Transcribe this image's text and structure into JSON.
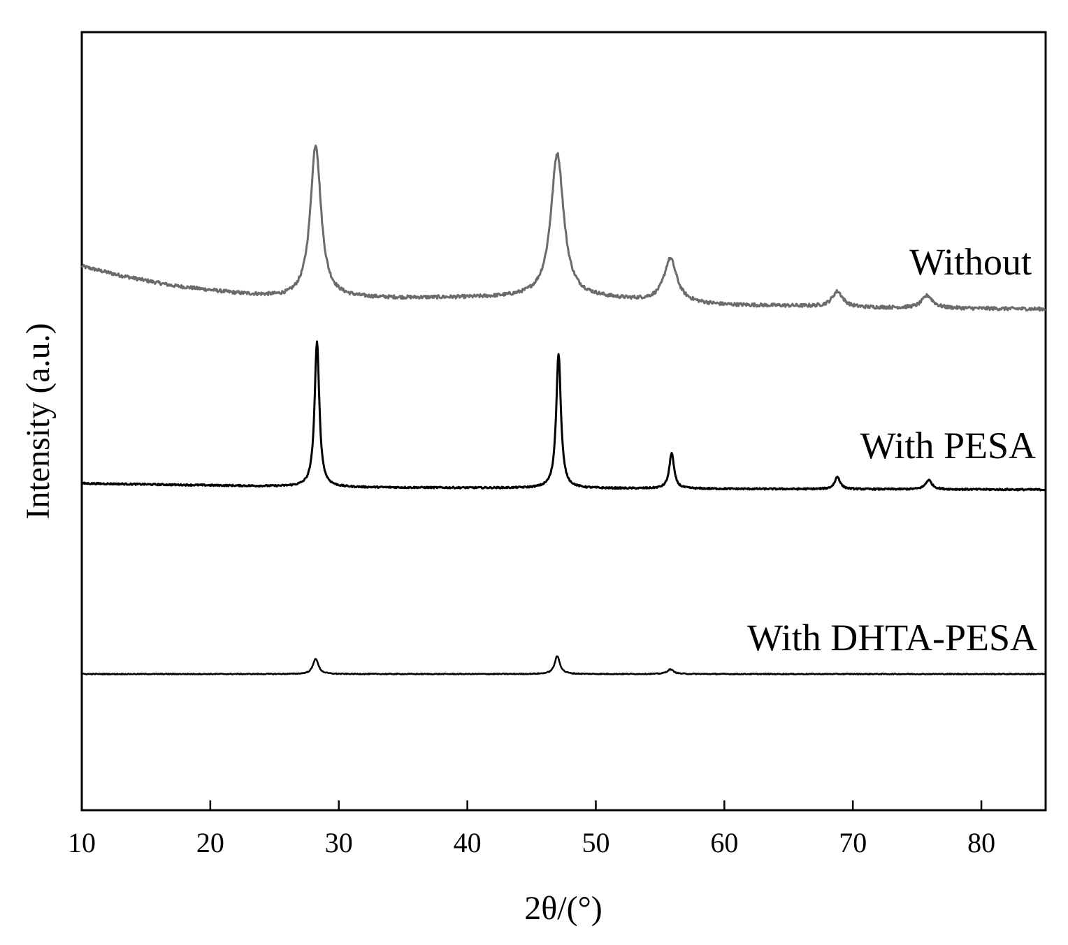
{
  "chart_data": {
    "type": "line",
    "title": "",
    "xlabel": "2θ/(°)",
    "ylabel": "Intensity (a.u.)",
    "xlim": [
      10,
      85
    ],
    "ylim": [
      0,
      100
    ],
    "xticks": [
      "10",
      "20",
      "30",
      "40",
      "50",
      "60",
      "70",
      "80"
    ],
    "yticks": [],
    "grid": false,
    "legend": "none",
    "series": [
      {
        "name": "Without",
        "color": "#6b6b6b",
        "baseline": [
          [
            10,
            69.9
          ],
          [
            13,
            68.7
          ],
          [
            17,
            67.4
          ],
          [
            22,
            66.4
          ],
          [
            26,
            65.8
          ],
          [
            35,
            65.8
          ],
          [
            45,
            65.9
          ],
          [
            50,
            65.8
          ],
          [
            55,
            65.3
          ],
          [
            60,
            64.9
          ],
          [
            65,
            64.8
          ],
          [
            70,
            64.6
          ],
          [
            85,
            64.4
          ]
        ],
        "peaks": [
          {
            "x": 28.2,
            "height": 19.7,
            "width": 0.5
          },
          {
            "x": 47.0,
            "height": 18.5,
            "width": 0.6
          },
          {
            "x": 55.8,
            "height": 5.6,
            "width": 0.6
          },
          {
            "x": 68.8,
            "height": 2.0,
            "width": 0.5
          },
          {
            "x": 75.8,
            "height": 1.6,
            "width": 0.5
          }
        ]
      },
      {
        "name": "With PESA",
        "color": "#000000",
        "baseline": [
          [
            10,
            42.0
          ],
          [
            30,
            41.5
          ],
          [
            45,
            41.4
          ],
          [
            60,
            41.3
          ],
          [
            85,
            41.2
          ]
        ],
        "peaks": [
          {
            "x": 28.3,
            "height": 18.7,
            "width": 0.22
          },
          {
            "x": 47.1,
            "height": 17.3,
            "width": 0.22
          },
          {
            "x": 55.9,
            "height": 4.6,
            "width": 0.22
          },
          {
            "x": 68.8,
            "height": 1.6,
            "width": 0.25
          },
          {
            "x": 75.9,
            "height": 1.2,
            "width": 0.3
          }
        ]
      },
      {
        "name": "With DHTA-PESA",
        "color": "#000000",
        "baseline": [
          [
            10,
            17.5
          ],
          [
            85,
            17.5
          ]
        ],
        "peaks": [
          {
            "x": 28.2,
            "height": 2.0,
            "width": 0.25
          },
          {
            "x": 47.0,
            "height": 2.3,
            "width": 0.25
          },
          {
            "x": 55.8,
            "height": 0.6,
            "width": 0.3
          }
        ]
      }
    ]
  }
}
